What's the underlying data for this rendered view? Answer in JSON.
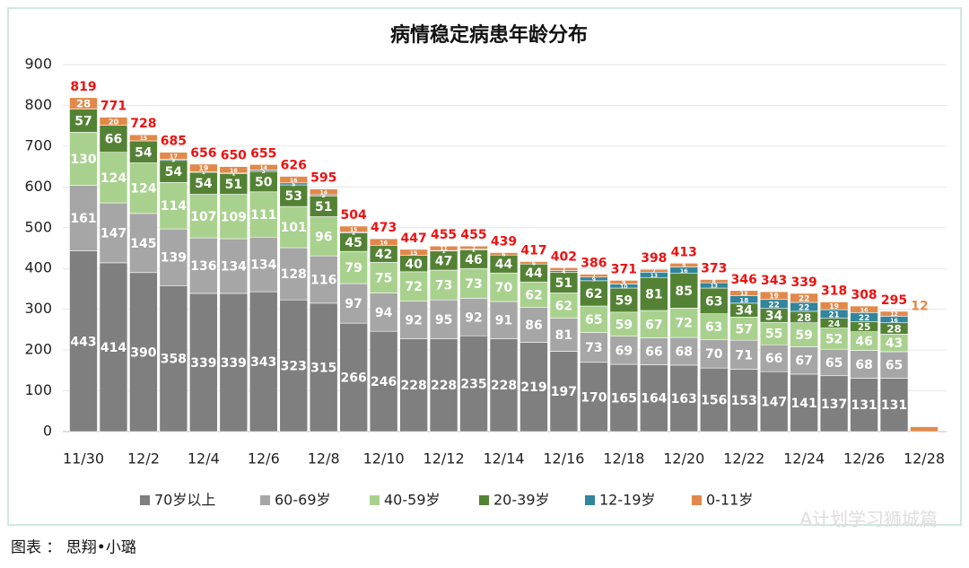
{
  "chart_data": {
    "type": "stacked-bar",
    "title": "病情稳定病患年龄分布",
    "categories": [
      "11/30",
      null,
      "12/2",
      null,
      "12/4",
      null,
      "12/6",
      null,
      "12/8",
      null,
      "12/10",
      null,
      "12/12",
      null,
      "12/14",
      null,
      "12/16",
      null,
      "12/18",
      null,
      "12/20",
      null,
      "12/22",
      null,
      "12/24",
      null,
      "12/26",
      null,
      "12/28"
    ],
    "series": [
      {
        "name": "70岁以上",
        "color": "#7f7f7f",
        "values": [
          443,
          414,
          390,
          358,
          339,
          339,
          343,
          323,
          315,
          266,
          246,
          228,
          228,
          235,
          228,
          219,
          197,
          170,
          165,
          164,
          163,
          156,
          153,
          147,
          141,
          137,
          131,
          131,
          null
        ]
      },
      {
        "name": "60-69岁",
        "color": "#a6a6a6",
        "values": [
          161,
          147,
          145,
          139,
          136,
          134,
          134,
          128,
          116,
          97,
          94,
          92,
          95,
          92,
          91,
          86,
          81,
          73,
          69,
          66,
          68,
          70,
          71,
          66,
          67,
          65,
          68,
          65,
          null
        ]
      },
      {
        "name": "40-59岁",
        "color": "#a9d18e",
        "values": [
          130,
          124,
          124,
          114,
          107,
          109,
          111,
          101,
          96,
          79,
          75,
          72,
          73,
          73,
          70,
          62,
          62,
          65,
          59,
          67,
          72,
          63,
          57,
          55,
          59,
          52,
          46,
          43,
          null
        ]
      },
      {
        "name": "20-39岁",
        "color": "#548235",
        "values": [
          57,
          66,
          54,
          54,
          54,
          51,
          50,
          53,
          51,
          45,
          42,
          40,
          47,
          46,
          44,
          44,
          51,
          62,
          59,
          81,
          85,
          63,
          34,
          34,
          28,
          24,
          25,
          28,
          null
        ]
      },
      {
        "name": "12-19岁",
        "color": "#31859c",
        "values": [
          null,
          null,
          null,
          3,
          1,
          1,
          3,
          5,
          3,
          2,
          null,
          null,
          1,
          2,
          null,
          null,
          4,
          9,
          10,
          13,
          16,
          13,
          18,
          22,
          22,
          21,
          22,
          16,
          null
        ]
      },
      {
        "name": "0-11岁",
        "color": "#e2894a",
        "values": [
          28,
          20,
          15,
          17,
          19,
          16,
          14,
          16,
          14,
          15,
          16,
          15,
          11,
          7,
          6,
          6,
          7,
          7,
          9,
          7,
          9,
          8,
          13,
          19,
          22,
          19,
          16,
          12,
          12
        ]
      }
    ],
    "totals": [
      819,
      771,
      728,
      685,
      656,
      650,
      655,
      626,
      595,
      504,
      473,
      447,
      455,
      455,
      439,
      417,
      402,
      386,
      371,
      398,
      413,
      373,
      346,
      343,
      339,
      318,
      308,
      295,
      null
    ],
    "ylim": [
      0,
      900
    ],
    "yticks": [
      0,
      100,
      200,
      300,
      400,
      500,
      600,
      700,
      800,
      900
    ],
    "grid": true
  },
  "caption": "图表 ： 思翔•小璐",
  "watermark": "A计划学习狮城篇"
}
